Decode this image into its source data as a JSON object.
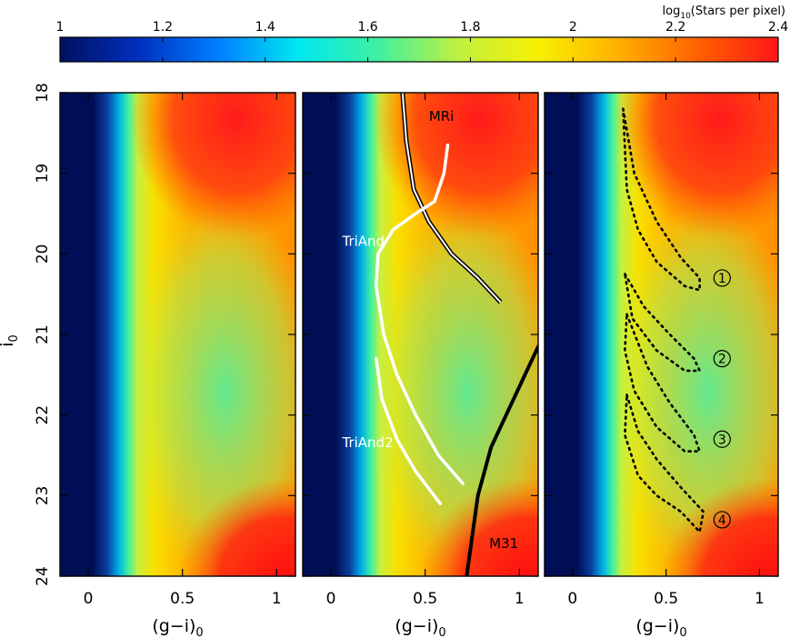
{
  "chart_data": {
    "type": "heatmap",
    "colorbar": {
      "label_prefix": "log",
      "label_sub": "10",
      "label_rest": "(Stars per pixel)",
      "range": [
        1,
        2.4
      ],
      "ticks": [
        "1",
        "1.2",
        "1.4",
        "1.6",
        "1.8",
        "2",
        "2.2",
        "2.4"
      ],
      "colors": [
        "#001060",
        "#0030c0",
        "#0080ff",
        "#00e8f0",
        "#40f0a0",
        "#c0f040",
        "#f8f000",
        "#ffb000",
        "#ff6000",
        "#ff1818"
      ]
    },
    "y_axis": {
      "label_main": "i",
      "label_sub": "0",
      "range": [
        18,
        24
      ],
      "inverted": true,
      "ticks": [
        "18",
        "19",
        "20",
        "21",
        "22",
        "23",
        "24"
      ]
    },
    "x_axis": {
      "label_main": "(g−i)",
      "label_sub": "0",
      "range": [
        -0.15,
        1.1
      ],
      "ticks": [
        "0",
        "0.5",
        "1"
      ]
    },
    "panels": [
      {
        "id": "left",
        "overlays": [],
        "labels": []
      },
      {
        "id": "middle",
        "overlays": [
          {
            "name": "MRi",
            "color": "double",
            "points": [
              [
                0.38,
                18.0
              ],
              [
                0.4,
                18.6
              ],
              [
                0.44,
                19.2
              ],
              [
                0.52,
                19.6
              ],
              [
                0.64,
                20.0
              ],
              [
                0.78,
                20.3
              ],
              [
                0.9,
                20.6
              ]
            ]
          },
          {
            "name": "TriAnd",
            "color": "white",
            "points": [
              [
                0.62,
                18.65
              ],
              [
                0.6,
                19.0
              ],
              [
                0.55,
                19.35
              ],
              [
                0.45,
                19.5
              ],
              [
                0.33,
                19.7
              ],
              [
                0.25,
                20.0
              ],
              [
                0.24,
                20.4
              ],
              [
                0.28,
                21.0
              ],
              [
                0.35,
                21.5
              ],
              [
                0.45,
                22.0
              ],
              [
                0.57,
                22.5
              ],
              [
                0.7,
                22.85
              ]
            ]
          },
          {
            "name": "TriAnd2",
            "color": "white",
            "points": [
              [
                0.24,
                21.3
              ],
              [
                0.27,
                21.8
              ],
              [
                0.35,
                22.3
              ],
              [
                0.45,
                22.7
              ],
              [
                0.58,
                23.1
              ]
            ]
          },
          {
            "name": "M31",
            "color": "black",
            "points": [
              [
                0.72,
                24.0
              ],
              [
                0.78,
                23.0
              ],
              [
                0.85,
                22.4
              ],
              [
                0.95,
                21.9
              ],
              [
                1.1,
                21.15
              ]
            ]
          }
        ],
        "labels": [
          {
            "text": "MRi",
            "x": 0.52,
            "y": 18.35
          },
          {
            "text": "TriAnd",
            "x": 0.06,
            "y": 19.9
          },
          {
            "text": "TriAnd2",
            "x": 0.06,
            "y": 22.4
          },
          {
            "text": "M31",
            "x": 0.84,
            "y": 23.65
          }
        ]
      },
      {
        "id": "right",
        "overlays": [
          {
            "name": "box-1",
            "color": "dotted",
            "points": [
              [
                0.27,
                18.2
              ],
              [
                0.33,
                19.0
              ],
              [
                0.45,
                19.6
              ],
              [
                0.58,
                20.05
              ],
              [
                0.68,
                20.3
              ],
              [
                0.68,
                20.45
              ],
              [
                0.6,
                20.4
              ],
              [
                0.45,
                20.1
              ],
              [
                0.35,
                19.7
              ],
              [
                0.29,
                19.2
              ],
              [
                0.27,
                18.2
              ]
            ]
          },
          {
            "name": "box-2",
            "color": "dotted",
            "points": [
              [
                0.28,
                20.25
              ],
              [
                0.38,
                20.65
              ],
              [
                0.52,
                21.0
              ],
              [
                0.65,
                21.3
              ],
              [
                0.68,
                21.45
              ],
              [
                0.6,
                21.45
              ],
              [
                0.45,
                21.2
              ],
              [
                0.32,
                20.8
              ],
              [
                0.28,
                20.25
              ]
            ]
          },
          {
            "name": "box-3",
            "color": "dotted",
            "points": [
              [
                0.29,
                20.75
              ],
              [
                0.4,
                21.4
              ],
              [
                0.52,
                21.85
              ],
              [
                0.65,
                22.25
              ],
              [
                0.68,
                22.45
              ],
              [
                0.6,
                22.45
              ],
              [
                0.45,
                22.15
              ],
              [
                0.33,
                21.7
              ],
              [
                0.28,
                21.2
              ],
              [
                0.29,
                20.75
              ]
            ]
          },
          {
            "name": "box-4",
            "color": "dotted",
            "points": [
              [
                0.29,
                21.75
              ],
              [
                0.35,
                22.2
              ],
              [
                0.45,
                22.55
              ],
              [
                0.58,
                22.9
              ],
              [
                0.7,
                23.2
              ],
              [
                0.68,
                23.45
              ],
              [
                0.58,
                23.2
              ],
              [
                0.45,
                23.0
              ],
              [
                0.35,
                22.75
              ],
              [
                0.28,
                22.25
              ],
              [
                0.29,
                21.75
              ]
            ]
          }
        ],
        "labels": [
          {
            "text": "1",
            "x": 0.8,
            "y": 20.3,
            "circled": true
          },
          {
            "text": "2",
            "x": 0.8,
            "y": 21.3,
            "circled": true
          },
          {
            "text": "3",
            "x": 0.8,
            "y": 22.3,
            "circled": true
          },
          {
            "text": "4",
            "x": 0.8,
            "y": 23.3,
            "circled": true
          }
        ]
      }
    ]
  }
}
